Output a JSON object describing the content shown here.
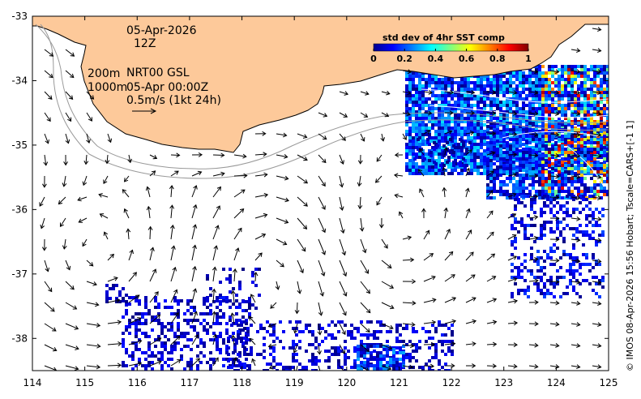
{
  "map": {
    "date": "05-Apr-2026",
    "hour": "12Z",
    "line1_prefix": "200m",
    "line1_suffix": "NRT00 GSL",
    "line2_prefix": "1000m",
    "line2_suffix": "05-Apr 00:00Z",
    "scale_label": "0.5m/s (1kt 24h)",
    "credit": "© IMOS 08-Apr-2026 15:56 Hobart; Tscale=CARS+[-1 1]",
    "land_color": "#fdc99a"
  },
  "colorbar": {
    "title": "std dev of 4hr SST comp",
    "ticks": [
      "0",
      "0.2",
      "0.4",
      "0.6",
      "0.8",
      "1"
    ],
    "tick_values": [
      0,
      0.2,
      0.4,
      0.6,
      0.8,
      1
    ],
    "colormap": "jet"
  },
  "chart_data": {
    "type": "map",
    "xlim": [
      114,
      125
    ],
    "ylim": [
      -38.5,
      -33
    ],
    "xticks": [
      "114",
      "115",
      "116",
      "117",
      "118",
      "119",
      "120",
      "121",
      "122",
      "123",
      "124",
      "125"
    ],
    "xtick_values": [
      114,
      115,
      116,
      117,
      118,
      119,
      120,
      121,
      122,
      123,
      124,
      125
    ],
    "yticks": [
      "-33",
      "-34",
      "-35",
      "-36",
      "-37",
      "-38"
    ],
    "ytick_values": [
      -33,
      -34,
      -35,
      -36,
      -37,
      -38
    ]
  }
}
